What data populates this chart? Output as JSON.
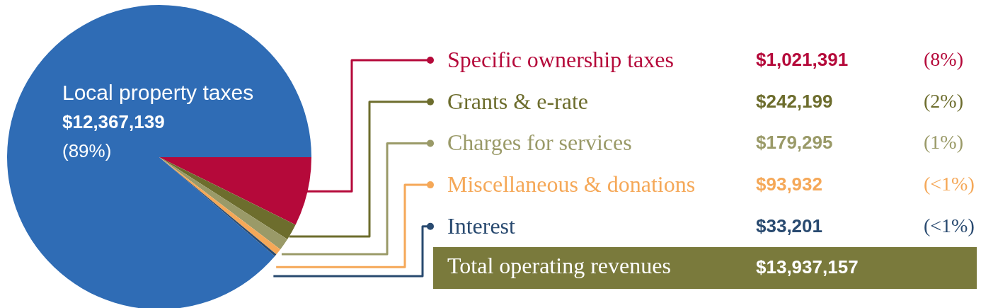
{
  "chart_data": {
    "type": "pie",
    "categories": [
      "Local property taxes",
      "Specific ownership taxes",
      "Grants & e-rate",
      "Charges for services",
      "Miscellaneous & donations",
      "Interest"
    ],
    "values": [
      12367139,
      1021391,
      242199,
      179295,
      93932,
      33201
    ],
    "colors": [
      "#2f6cb5",
      "#b5093a",
      "#6d6d2d",
      "#9a9a68",
      "#f5a858",
      "#294a70"
    ],
    "legend": "right",
    "value_labels": [
      "$12,367,139",
      "$1,021,391",
      "$242,199",
      "$179,295",
      "$93,932",
      "$33,201"
    ],
    "annotations": [
      {
        "text": "(89%)",
        "x": "Local property taxes"
      },
      {
        "text": "(8%)",
        "x": "Specific ownership taxes"
      },
      {
        "text": "(2%)",
        "x": "Grants & e-rate"
      },
      {
        "text": "(1%)",
        "x": "Charges for services"
      },
      {
        "text": "(<1%)",
        "x": "Miscellaneous & donations"
      },
      {
        "text": "(<1%)",
        "x": "Interest"
      },
      "Total operating revenues",
      "$13,937,157"
    ]
  }
}
